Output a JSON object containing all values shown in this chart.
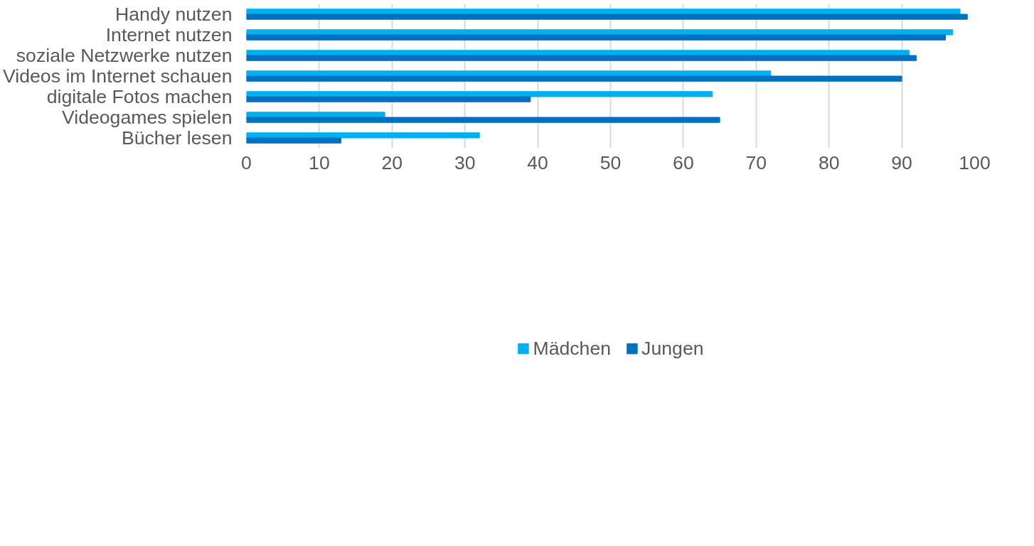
{
  "chart_data": {
    "type": "bar",
    "orientation": "horizontal",
    "categories": [
      "Handy nutzen",
      "Internet nutzen",
      "soziale Netzwerke nutzen",
      "Videos im Internet schauen",
      "digitale Fotos machen",
      "Videogames spielen",
      "Bücher lesen"
    ],
    "series": [
      {
        "name": "Mädchen",
        "color": "#00b0f0",
        "values": [
          98,
          97,
          91,
          72,
          64,
          19,
          32
        ]
      },
      {
        "name": "Jungen",
        "color": "#0070c0",
        "values": [
          99,
          96,
          92,
          90,
          39,
          65,
          13
        ]
      }
    ],
    "xlim": [
      0,
      100
    ],
    "xticks": [
      0,
      10,
      20,
      30,
      40,
      50,
      60,
      70,
      80,
      90,
      100
    ],
    "grid": "x",
    "legend": "bottom"
  }
}
